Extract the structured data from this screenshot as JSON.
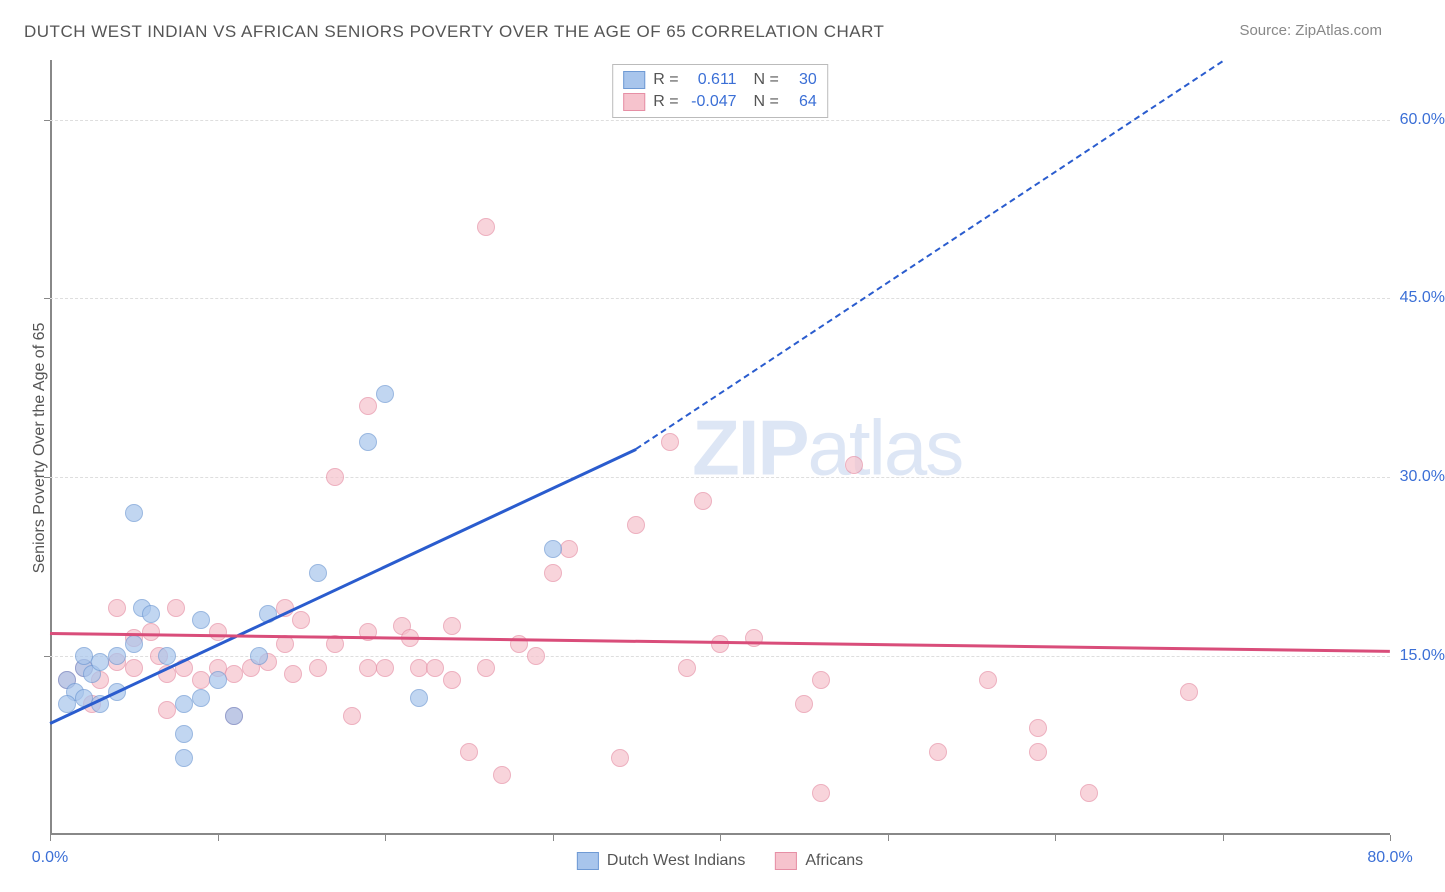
{
  "title": "DUTCH WEST INDIAN VS AFRICAN SENIORS POVERTY OVER THE AGE OF 65 CORRELATION CHART",
  "source": "Source: ZipAtlas.com",
  "y_axis_label": "Seniors Poverty Over the Age of 65",
  "watermark_bold": "ZIP",
  "watermark_light": "atlas",
  "chart": {
    "type": "scatter",
    "xlim": [
      0,
      80
    ],
    "ylim": [
      0,
      65
    ],
    "y_ticks": [
      15,
      30,
      45,
      60
    ],
    "y_tick_labels": [
      "15.0%",
      "30.0%",
      "45.0%",
      "60.0%"
    ],
    "x_ticks": [
      0,
      10,
      20,
      30,
      40,
      50,
      60,
      70,
      80
    ],
    "x_tick_labels": [
      "0.0%",
      "",
      "",
      "",
      "",
      "",
      "",
      "",
      "80.0%"
    ],
    "grid_color": "#dedede",
    "axis_color": "#888888",
    "tick_label_color": "#3b6fd6",
    "background_color": "#ffffff",
    "series": [
      {
        "name": "Dutch West Indians",
        "fill": "#a8c5ec",
        "stroke": "#6f9ad4",
        "R": "0.611",
        "N": "30",
        "trend": {
          "x1": 0,
          "y1": 9.5,
          "x2": 35,
          "y2": 32.5,
          "dashed_to": {
            "x": 70,
            "y": 65
          },
          "color": "#2a5cce"
        },
        "points": [
          [
            1,
            13
          ],
          [
            1.5,
            12
          ],
          [
            2,
            14
          ],
          [
            1,
            11
          ],
          [
            2,
            11.5
          ],
          [
            2.5,
            13.5
          ],
          [
            3,
            14.5
          ],
          [
            2,
            15
          ],
          [
            4,
            12
          ],
          [
            3,
            11
          ],
          [
            4,
            15
          ],
          [
            5,
            16
          ],
          [
            5.5,
            19
          ],
          [
            6,
            18.5
          ],
          [
            5,
            27
          ],
          [
            7,
            15
          ],
          [
            8,
            11
          ],
          [
            9,
            11.5
          ],
          [
            9,
            18
          ],
          [
            10,
            13
          ],
          [
            11,
            10
          ],
          [
            12.5,
            15
          ],
          [
            13,
            18.5
          ],
          [
            8,
            8.5
          ],
          [
            8,
            6.5
          ],
          [
            16,
            22
          ],
          [
            19,
            33
          ],
          [
            20,
            37
          ],
          [
            22,
            11.5
          ],
          [
            30,
            24
          ]
        ]
      },
      {
        "name": "Africans",
        "fill": "#f6c3cd",
        "stroke": "#e68fa5",
        "R": "-0.047",
        "N": "64",
        "trend": {
          "x1": 0,
          "y1": 17,
          "x2": 80,
          "y2": 15.5,
          "color": "#d94d7a"
        },
        "points": [
          [
            1,
            13
          ],
          [
            2,
            14
          ],
          [
            2.5,
            11
          ],
          [
            3,
            13
          ],
          [
            4,
            14.5
          ],
          [
            5,
            14
          ],
          [
            5,
            16.5
          ],
          [
            6,
            17
          ],
          [
            6.5,
            15
          ],
          [
            7,
            13.5
          ],
          [
            7,
            10.5
          ],
          [
            7.5,
            19
          ],
          [
            8,
            14
          ],
          [
            9,
            13
          ],
          [
            10,
            14
          ],
          [
            10,
            17
          ],
          [
            11,
            13.5
          ],
          [
            11,
            10
          ],
          [
            12,
            14
          ],
          [
            13,
            14.5
          ],
          [
            14,
            16
          ],
          [
            14.5,
            13.5
          ],
          [
            15,
            18
          ],
          [
            16,
            14
          ],
          [
            17,
            16
          ],
          [
            17,
            30
          ],
          [
            18,
            10
          ],
          [
            19,
            14
          ],
          [
            19,
            36
          ],
          [
            20,
            14
          ],
          [
            21,
            17.5
          ],
          [
            21.5,
            16.5
          ],
          [
            22,
            14
          ],
          [
            23,
            14
          ],
          [
            24,
            13
          ],
          [
            24,
            17.5
          ],
          [
            25,
            7
          ],
          [
            26,
            14
          ],
          [
            27,
            5
          ],
          [
            28,
            16
          ],
          [
            29,
            15
          ],
          [
            30,
            22
          ],
          [
            31,
            24
          ],
          [
            34,
            6.5
          ],
          [
            35,
            26
          ],
          [
            37,
            33
          ],
          [
            38,
            14
          ],
          [
            40,
            16
          ],
          [
            39,
            28
          ],
          [
            42,
            16.5
          ],
          [
            45,
            11
          ],
          [
            46,
            13
          ],
          [
            46,
            3.5
          ],
          [
            48,
            31
          ],
          [
            53,
            7
          ],
          [
            56,
            13
          ],
          [
            59,
            7
          ],
          [
            59,
            9
          ],
          [
            62,
            3.5
          ],
          [
            26,
            51
          ],
          [
            68,
            12
          ],
          [
            4,
            19
          ],
          [
            14,
            19
          ],
          [
            19,
            17
          ]
        ]
      }
    ],
    "marker_radius": 9
  },
  "legend_bottom": [
    {
      "label": "Dutch West Indians",
      "fill": "#a8c5ec",
      "stroke": "#6f9ad4"
    },
    {
      "label": "Africans",
      "fill": "#f6c3cd",
      "stroke": "#e68fa5"
    }
  ]
}
